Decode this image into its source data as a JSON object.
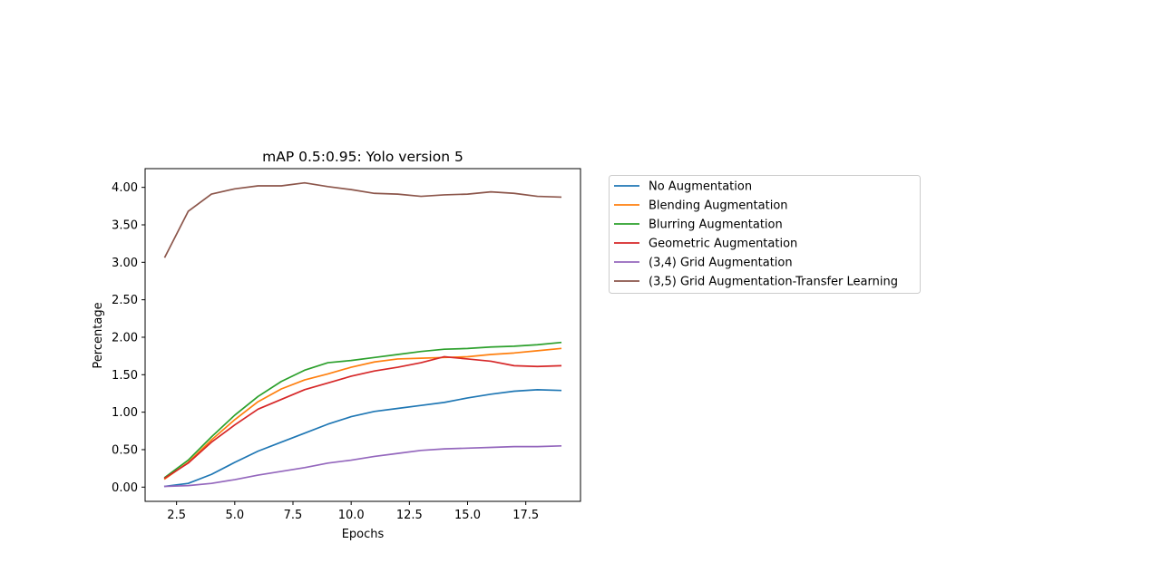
{
  "chart_data": {
    "type": "line",
    "title": "mAP 0.5:0.95: Yolo version 5",
    "xlabel": "Epochs",
    "ylabel": "Percentage",
    "xlim": [
      1.15,
      19.85
    ],
    "ylim": [
      -0.19,
      4.25
    ],
    "xticks": [
      2.5,
      5.0,
      7.5,
      10.0,
      12.5,
      15.0,
      17.5
    ],
    "xtick_labels": [
      "2.5",
      "5.0",
      "7.5",
      "10.0",
      "12.5",
      "15.0",
      "17.5"
    ],
    "yticks": [
      0,
      0.5,
      1.0,
      1.5,
      2.0,
      2.5,
      3.0,
      3.5,
      4.0
    ],
    "ytick_labels": [
      "0.00",
      "0.50",
      "1.00",
      "1.50",
      "2.00",
      "2.50",
      "3.00",
      "3.50",
      "4.00"
    ],
    "grid": false,
    "legend_position": "outside-right",
    "x": [
      2,
      3,
      4,
      5,
      6,
      7,
      8,
      9,
      10,
      11,
      12,
      13,
      14,
      15,
      16,
      17,
      18,
      19
    ],
    "series": [
      {
        "name": "No Augmentation",
        "color": "#1f77b4",
        "values": [
          0.01,
          0.05,
          0.17,
          0.33,
          0.48,
          0.6,
          0.72,
          0.84,
          0.94,
          1.01,
          1.05,
          1.09,
          1.13,
          1.19,
          1.24,
          1.28,
          1.3,
          1.29
        ]
      },
      {
        "name": "Blending Augmentation",
        "color": "#ff7f0e",
        "values": [
          0.11,
          0.33,
          0.63,
          0.9,
          1.14,
          1.31,
          1.43,
          1.51,
          1.6,
          1.67,
          1.71,
          1.72,
          1.73,
          1.74,
          1.77,
          1.79,
          1.82,
          1.85
        ]
      },
      {
        "name": "Blurring Augmentation",
        "color": "#2ca02c",
        "values": [
          0.13,
          0.36,
          0.67,
          0.96,
          1.21,
          1.41,
          1.56,
          1.66,
          1.69,
          1.73,
          1.77,
          1.81,
          1.84,
          1.85,
          1.87,
          1.88,
          1.9,
          1.93
        ]
      },
      {
        "name": "Geometric Augmentation",
        "color": "#d62728",
        "values": [
          0.12,
          0.32,
          0.6,
          0.83,
          1.04,
          1.17,
          1.3,
          1.39,
          1.48,
          1.55,
          1.6,
          1.66,
          1.74,
          1.71,
          1.68,
          1.62,
          1.61,
          1.62
        ]
      },
      {
        "name": "(3,4) Grid Augmentation",
        "color": "#9467bd",
        "values": [
          0.01,
          0.02,
          0.05,
          0.1,
          0.16,
          0.21,
          0.26,
          0.32,
          0.36,
          0.41,
          0.45,
          0.49,
          0.51,
          0.52,
          0.53,
          0.54,
          0.54,
          0.55
        ]
      },
      {
        "name": "(3,5) Grid Augmentation-Transfer Learning",
        "color": "#8c564b",
        "values": [
          3.07,
          3.68,
          3.91,
          3.98,
          4.02,
          4.02,
          4.06,
          4.01,
          3.97,
          3.92,
          3.91,
          3.88,
          3.9,
          3.91,
          3.94,
          3.92,
          3.88,
          3.87
        ]
      }
    ]
  }
}
